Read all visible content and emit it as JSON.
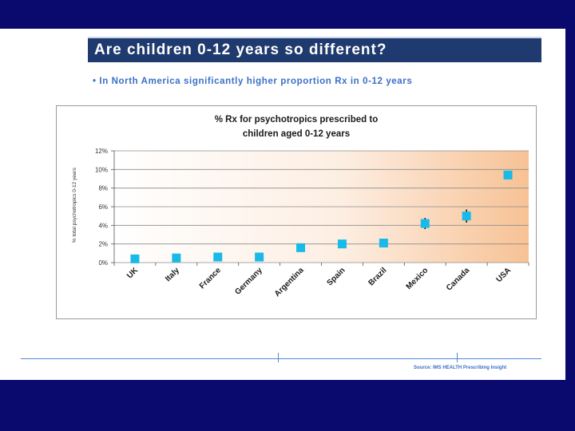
{
  "slide": {
    "title": "Are children 0-12 years so different?",
    "bullet": "• In North America significantly higher proportion Rx in 0-12 years",
    "source": "Source: IMS HEALTH Prescribing Insight"
  },
  "chart_data": {
    "type": "scatter",
    "title_line1": "% Rx for psychotropics prescribed to",
    "title_line2": "children aged 0-12 years",
    "ylabel": "% total psychotropics 0-12 years",
    "xlabel": "",
    "categories": [
      "UK",
      "Italy",
      "France",
      "Germany",
      "Argentina",
      "Spain",
      "Brazil",
      "Mexico",
      "Canada",
      "USA"
    ],
    "values": [
      0.4,
      0.5,
      0.6,
      0.6,
      1.6,
      2.0,
      2.1,
      4.2,
      5.0,
      9.4
    ],
    "error": [
      0,
      0,
      0,
      0,
      0,
      0,
      0,
      0.6,
      0.7,
      0.3
    ],
    "ylim": [
      0,
      12
    ],
    "yticks": [
      0,
      2,
      4,
      6,
      8,
      10,
      12
    ],
    "ytick_labels": [
      "0%",
      "2%",
      "4%",
      "6%",
      "8%",
      "10%",
      "12%"
    ],
    "grid": true,
    "marker_color": "#19b9e8",
    "legend": "none"
  }
}
